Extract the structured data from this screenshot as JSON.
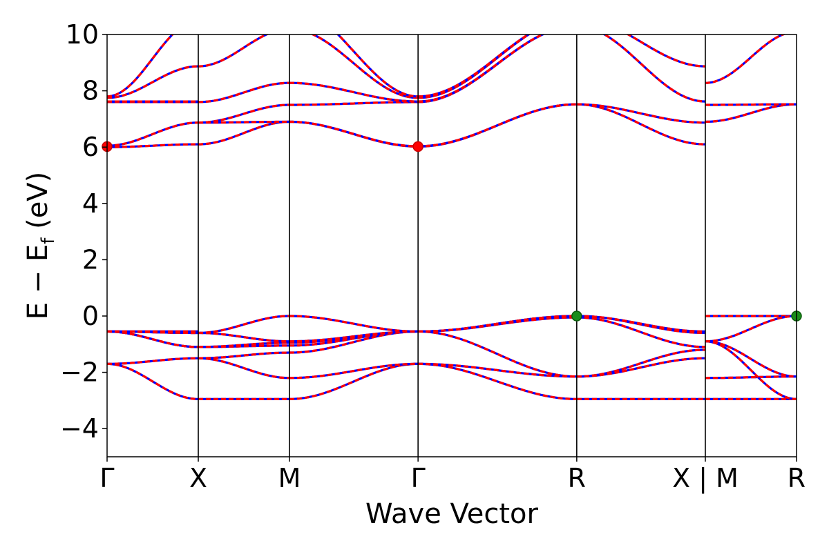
{
  "chart_data": {
    "type": "line",
    "title": "",
    "xlabel": "Wave Vector",
    "ylabel_main": "E − E",
    "ylabel_sub": "f",
    "ylabel_unit": " (eV)",
    "ylim": [
      -5,
      10
    ],
    "yticks": [
      {
        "value": -4,
        "label": "−4"
      },
      {
        "value": -2,
        "label": "−2"
      },
      {
        "value": 0,
        "label": "0"
      },
      {
        "value": 2,
        "label": "2"
      },
      {
        "value": 4,
        "label": "4"
      },
      {
        "value": 6,
        "label": "6"
      },
      {
        "value": 8,
        "label": "8"
      },
      {
        "value": 10,
        "label": "10"
      }
    ],
    "xlim": [
      0,
      7.56
    ],
    "kpoints": [
      {
        "x": 0.0,
        "label": "Γ"
      },
      {
        "x": 1.0,
        "label": "X"
      },
      {
        "x": 2.0,
        "label": "M"
      },
      {
        "x": 3.41,
        "label": "Γ"
      },
      {
        "x": 5.15,
        "label": "R"
      },
      {
        "x": 6.56,
        "label": "X | M"
      },
      {
        "x": 7.56,
        "label": "R"
      }
    ],
    "segments": [
      {
        "x0": 0.0,
        "x1": 1.0,
        "bands": [
          [
            -1.7,
            -2.95
          ],
          [
            -1.7,
            -1.5
          ],
          [
            -0.55,
            -1.1
          ],
          [
            -0.55,
            -1.1
          ],
          [
            -0.55,
            -0.6
          ],
          [
            -0.55,
            -0.6
          ],
          [
            -0.55,
            -0.55
          ],
          [
            6.0,
            6.1
          ],
          [
            6.05,
            6.87
          ],
          [
            7.6,
            7.6
          ],
          [
            7.62,
            7.62
          ],
          [
            7.75,
            8.87
          ],
          [
            7.8,
            10.5
          ]
        ]
      },
      {
        "x0": 1.0,
        "x1": 2.0,
        "bands": [
          [
            -2.95,
            -2.95
          ],
          [
            -1.5,
            -2.2
          ],
          [
            -1.5,
            -1.3
          ],
          [
            -1.1,
            -1.05
          ],
          [
            -1.1,
            -0.95
          ],
          [
            -0.6,
            -0.9
          ],
          [
            -0.6,
            0.0
          ],
          [
            6.1,
            6.9
          ],
          [
            6.87,
            6.9
          ],
          [
            6.87,
            7.5
          ],
          [
            7.6,
            8.28
          ],
          [
            8.87,
            10.2
          ],
          [
            10.5,
            11.0
          ]
        ]
      },
      {
        "x0": 2.0,
        "x1": 3.41,
        "bands": [
          [
            -2.95,
            -1.7
          ],
          [
            -2.2,
            -1.7
          ],
          [
            -1.3,
            -0.55
          ],
          [
            -1.05,
            -0.55
          ],
          [
            -0.95,
            -0.55
          ],
          [
            -0.9,
            -0.55
          ],
          [
            0.0,
            -0.55
          ],
          [
            6.9,
            6.02
          ],
          [
            6.9,
            6.03
          ],
          [
            7.5,
            7.6
          ],
          [
            8.28,
            7.62
          ],
          [
            10.2,
            7.75
          ],
          [
            11.0,
            7.8
          ]
        ]
      },
      {
        "x0": 3.41,
        "x1": 5.15,
        "bands": [
          [
            -1.7,
            -2.95
          ],
          [
            -1.7,
            -2.15
          ],
          [
            -0.55,
            -2.15
          ],
          [
            -0.55,
            -0.05
          ],
          [
            -0.55,
            0.0
          ],
          [
            -0.55,
            0.0
          ],
          [
            6.02,
            7.52
          ],
          [
            6.03,
            7.52
          ],
          [
            7.6,
            10.3
          ],
          [
            7.62,
            10.3
          ],
          [
            7.75,
            10.6
          ],
          [
            7.8,
            10.6
          ]
        ]
      },
      {
        "x0": 5.15,
        "x1": 6.56,
        "bands": [
          [
            -2.95,
            -2.95
          ],
          [
            -2.15,
            -1.5
          ],
          [
            -2.15,
            -1.2
          ],
          [
            -0.05,
            -1.1
          ],
          [
            0.0,
            -0.6
          ],
          [
            0.0,
            -0.55
          ],
          [
            7.52,
            6.1
          ],
          [
            7.52,
            6.87
          ],
          [
            10.3,
            7.62
          ],
          [
            10.6,
            8.87
          ]
        ]
      },
      {
        "x0": 6.56,
        "x1": 7.56,
        "bands": [
          [
            -2.95,
            -2.95
          ],
          [
            -2.2,
            -2.15
          ],
          [
            -0.9,
            -2.95
          ],
          [
            -0.9,
            -2.15
          ],
          [
            0.0,
            0.0
          ],
          [
            -0.9,
            0.0
          ],
          [
            6.9,
            7.52
          ],
          [
            7.5,
            7.52
          ],
          [
            8.28,
            10.1
          ]
        ]
      }
    ],
    "markers": [
      {
        "x": 0.0,
        "y": 6.02,
        "color": "#ff0000",
        "edge": "#cc0000"
      },
      {
        "x": 3.41,
        "y": 6.02,
        "color": "#ff0000",
        "edge": "#cc0000"
      },
      {
        "x": 5.15,
        "y": 0.0,
        "color": "#1a8c1a",
        "edge": "#0b5a0b"
      },
      {
        "x": 7.56,
        "y": 0.0,
        "color": "#1a8c1a",
        "edge": "#0b5a0b"
      }
    ],
    "colors": {
      "spin_up": "#0000ff",
      "spin_down": "#ff0000",
      "vline": "#000000"
    }
  }
}
